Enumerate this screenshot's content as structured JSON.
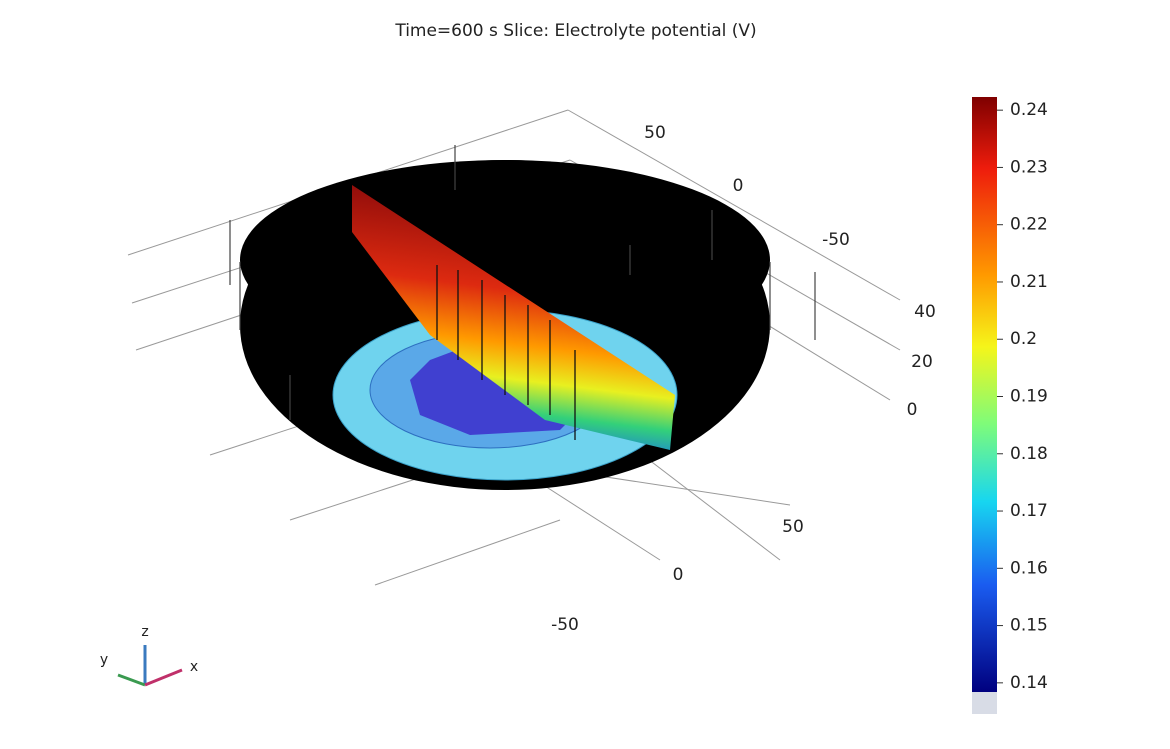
{
  "title": "Time=600 s   Slice: Electrolyte potential (V)",
  "axes": {
    "y_ticks": [
      50,
      0,
      -50
    ],
    "z_ticks": [
      40,
      20,
      0
    ],
    "x_ticks": [
      50,
      0,
      -50
    ],
    "triad": [
      "z",
      "y",
      "x"
    ]
  },
  "colorbar": {
    "lim": [
      0.1384,
      0.2423
    ],
    "ticks": [
      0.24,
      0.23,
      0.22,
      0.21,
      0.2,
      0.19,
      0.18,
      0.17,
      0.16,
      0.15,
      0.14
    ]
  }
}
